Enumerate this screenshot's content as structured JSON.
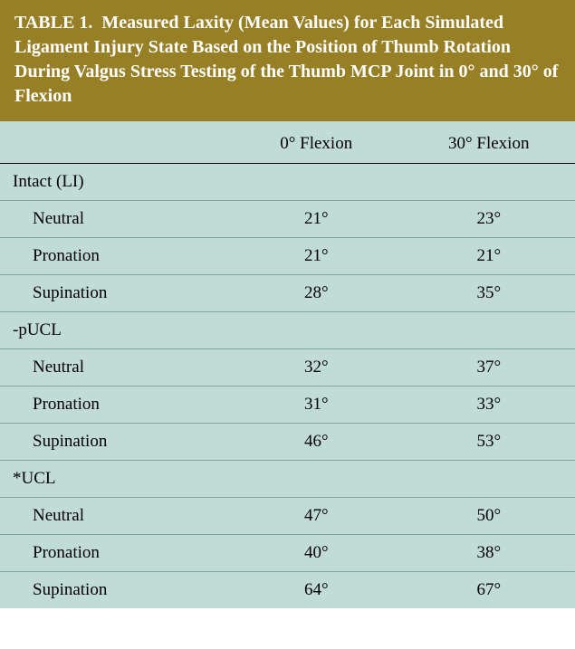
{
  "table": {
    "number_label": "TABLE 1.",
    "title_text": "Measured Laxity (Mean Values) for Each Simulated Ligament Injury State Based on the Position of Thumb Rotation During Valgus Stress Testing of the Thumb MCP Joint in 0° and 30° of Flexion",
    "columns": [
      "",
      "0° Flexion",
      "30° Flexion"
    ],
    "column_widths_pct": [
      40,
      30,
      30
    ],
    "colors": {
      "header_bg": "#977f25",
      "header_text": "#ffffff",
      "body_bg": "#c1dbd7",
      "body_text": "#000000",
      "row_divider": "#7fa8a2",
      "header_rule": "#000000"
    },
    "fonts": {
      "title_size_pt": 15,
      "title_weight": "bold",
      "body_size_pt": 14,
      "body_weight": "normal",
      "family": "Times New Roman"
    },
    "groups": [
      {
        "label": "Intact (LI)",
        "rows": [
          {
            "label": "Neutral",
            "v0": "21°",
            "v30": "23°"
          },
          {
            "label": "Pronation",
            "v0": "21°",
            "v30": "21°"
          },
          {
            "label": "Supination",
            "v0": "28°",
            "v30": "35°"
          }
        ]
      },
      {
        "label": "-pUCL",
        "rows": [
          {
            "label": "Neutral",
            "v0": "32°",
            "v30": "37°"
          },
          {
            "label": "Pronation",
            "v0": "31°",
            "v30": "33°"
          },
          {
            "label": "Supination",
            "v0": "46°",
            "v30": "53°"
          }
        ]
      },
      {
        "label": "*UCL",
        "rows": [
          {
            "label": "Neutral",
            "v0": "47°",
            "v30": "50°"
          },
          {
            "label": "Pronation",
            "v0": "40°",
            "v30": "38°"
          },
          {
            "label": "Supination",
            "v0": "64°",
            "v30": "67°"
          }
        ]
      }
    ]
  }
}
